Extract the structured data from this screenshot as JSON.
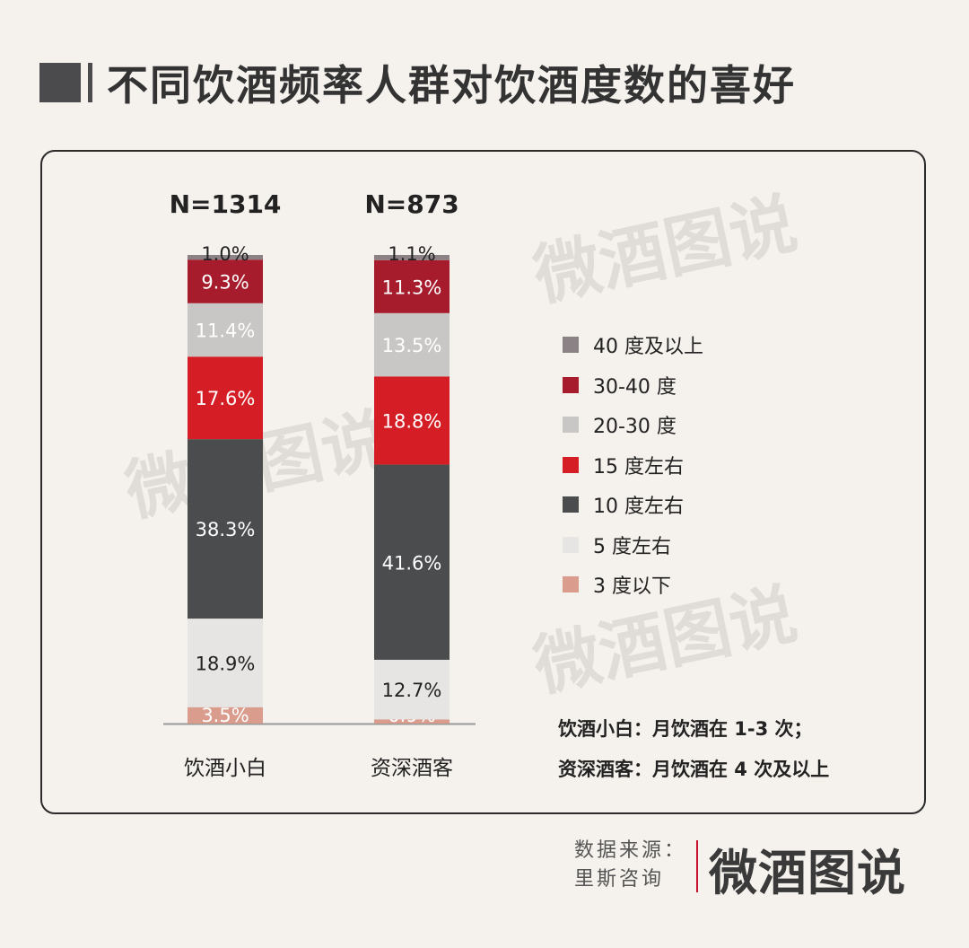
{
  "title": "不同饮酒频率人群对饮酒度数的喜好",
  "watermark_text": "微酒图说",
  "legend": [
    {
      "label": "40 度及以上",
      "color": "#8a8284"
    },
    {
      "label": "30-40 度",
      "color": "#a61c2c"
    },
    {
      "label": "20-30 度",
      "color": "#c9c7c6"
    },
    {
      "label": "15 度左右",
      "color": "#d41d24"
    },
    {
      "label": "10 度左右",
      "color": "#4b4c4e"
    },
    {
      "label": "5 度左右",
      "color": "#e6e5e4"
    },
    {
      "label": "3 度以下",
      "color": "#d99c8d"
    }
  ],
  "notes": [
    "饮酒小白：月饮酒在 1-3 次；",
    "资深酒客：月饮酒在 4 次及以上"
  ],
  "source": {
    "line1": "数据来源：",
    "line2": "里斯咨询"
  },
  "brand": "微酒图说",
  "chart_data": {
    "type": "bar",
    "stacked": true,
    "categories": [
      "饮酒小白",
      "资深酒客"
    ],
    "sample_sizes": [
      "N=1314",
      "N=873"
    ],
    "series": [
      {
        "name": "3 度以下",
        "values": [
          3.5,
          0.9
        ],
        "color": "#d99c8d",
        "label_color": "#ffffff"
      },
      {
        "name": "5 度左右",
        "values": [
          18.9,
          12.7
        ],
        "color": "#e6e5e4",
        "label_color": "#222222"
      },
      {
        "name": "10 度左右",
        "values": [
          38.3,
          41.6
        ],
        "color": "#4b4c4e",
        "label_color": "#ffffff"
      },
      {
        "name": "15 度左右",
        "values": [
          17.6,
          18.8
        ],
        "color": "#d41d24",
        "label_color": "#ffffff"
      },
      {
        "name": "20-30 度",
        "values": [
          11.4,
          13.5
        ],
        "color": "#c9c7c6",
        "label_color": "#ffffff"
      },
      {
        "name": "30-40 度",
        "values": [
          9.3,
          11.3
        ],
        "color": "#a61c2c",
        "label_color": "#ffffff"
      },
      {
        "name": "40 度及以上",
        "values": [
          1.0,
          1.1
        ],
        "color": "#8a8284",
        "label_color": "#222222"
      }
    ],
    "unit": "%"
  }
}
